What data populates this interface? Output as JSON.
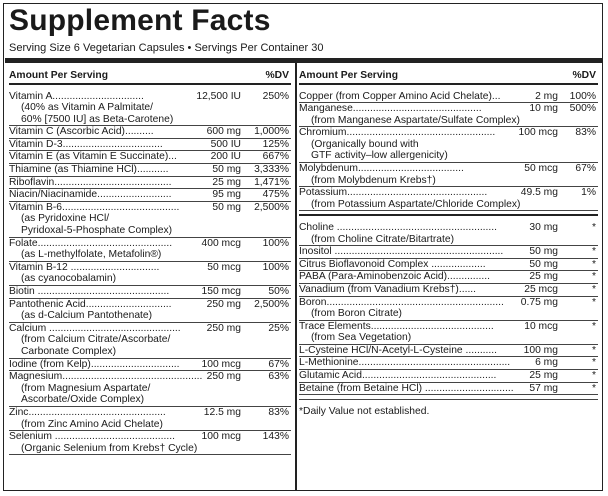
{
  "title": "Supplement Facts",
  "serving": "Serving Size 6 Vegetarian Capsules • Servings Per Container 30",
  "left": {
    "header_amount": "Amount Per Serving",
    "header_dv": "%DV",
    "items": [
      {
        "name": "Vitamin A................................",
        "amount": "12,500 IU",
        "dv": "250%",
        "sub": [
          "(40% as Vitamin A Palmitate/",
          "60% [7500 IU] as Beta-Carotene)"
        ]
      },
      {
        "name": "Vitamin C (Ascorbic Acid)..........",
        "amount": "600 mg",
        "dv": "1,000%",
        "sub": []
      },
      {
        "name": "Vitamin D-3...................................",
        "amount": "500 IU",
        "dv": "125%",
        "sub": []
      },
      {
        "name": "Vitamin E (as Vitamin E Succinate)...",
        "amount": "200 IU",
        "dv": "667%",
        "sub": []
      },
      {
        "name": "Thiamine (as Thiamine HCl)...........",
        "amount": "50 mg",
        "dv": "3,333%",
        "sub": []
      },
      {
        "name": "Riboflavin.........................................",
        "amount": "25 mg",
        "dv": "1,471%",
        "sub": []
      },
      {
        "name": "Niacin/Niacinamide..........................",
        "amount": "95 mg",
        "dv": "475%",
        "sub": []
      },
      {
        "name": "Vitamin B-6.........................................",
        "amount": "50 mg",
        "dv": "2,500%",
        "sub": [
          "(as Pyridoxine HCl/",
          "Pyridoxal-5-Phosphate Complex)"
        ]
      },
      {
        "name": "Folate...............................................",
        "amount": "400 mcg",
        "dv": "100%",
        "sub": [
          "(as L-methylfolate, Metafolin®)"
        ]
      },
      {
        "name": "Vitamin B-12 ...............................",
        "amount": "50 mcg",
        "dv": "100%",
        "sub": [
          "(as cyanocobalamin)"
        ]
      },
      {
        "name": "Biotin ..............................................",
        "amount": "150 mcg",
        "dv": "50%",
        "sub": []
      },
      {
        "name": "Pantothenic Acid..............................",
        "amount": "250 mg",
        "dv": "2,500%",
        "sub": [
          "(as d-Calcium Pantothenate)"
        ]
      },
      {
        "name": "Calcium ..............................................",
        "amount": "250 mg",
        "dv": "25%",
        "sub": [
          "(from Calcium Citrate/Ascorbate/",
          "Carbonate Complex)"
        ]
      },
      {
        "name": "Iodine (from Kelp)...............................",
        "amount": "100 mcg",
        "dv": "67%",
        "sub": []
      },
      {
        "name": "Magnesium.................................................",
        "amount": "250 mg",
        "dv": "63%",
        "sub": [
          "(from Magnesium Aspartate/",
          "Ascorbate/Oxide Complex)"
        ]
      },
      {
        "name": "Zinc................................................",
        "amount": "12.5 mg",
        "dv": "83%",
        "sub": [
          "(from Zinc Amino Acid Chelate)"
        ]
      },
      {
        "name": "Selenium ..........................................",
        "amount": "100 mcg",
        "dv": "143%",
        "sub": [
          "(Organic Selenium from Krebs† Cycle)"
        ]
      }
    ]
  },
  "right": {
    "header_amount": "Amount Per Serving",
    "header_dv": "%DV",
    "items_a": [
      {
        "name": "Copper (from Copper Amino Acid Chelate)...",
        "amount": "2 mg",
        "dv": "100%",
        "sub": []
      },
      {
        "name": "Manganese.............................................",
        "amount": "10 mg",
        "dv": "500%",
        "sub": [
          "(from Manganese Aspartate/Sulfate Complex)"
        ]
      },
      {
        "name": "Chromium....................................................",
        "amount": "100 mcg",
        "dv": "83%",
        "sub": [
          "(Organically bound with",
          "GTF activity–low allergenicity)"
        ]
      },
      {
        "name": "Molybdenum.....................................",
        "amount": "50 mcg",
        "dv": "67%",
        "sub": [
          "(from Molybdenum Krebs†)"
        ]
      },
      {
        "name": "Potassium.................................................",
        "amount": "49.5 mg",
        "dv": "1%",
        "sub": [
          "(from Potassium Aspartate/Chloride Complex)"
        ]
      }
    ],
    "items_b": [
      {
        "name": "Choline ........................................................",
        "amount": "30 mg",
        "dv": "*",
        "sub": [
          "(from Choline Citrate/Bitartrate)"
        ]
      },
      {
        "name": "Inositol ...........................................................",
        "amount": "50 mg",
        "dv": "*",
        "sub": []
      },
      {
        "name": "Citrus Bioflavonoid Complex ...................",
        "amount": "50 mg",
        "dv": "*",
        "sub": []
      },
      {
        "name": "PABA (Para-Aminobenzoic Acid)...............",
        "amount": "25 mg",
        "dv": "*",
        "sub": []
      },
      {
        "name": "Vanadium (from Vanadium Krebs†)......",
        "amount": "25 mcg",
        "dv": "*",
        "sub": []
      },
      {
        "name": "Boron..............................................................",
        "amount": "0.75 mg",
        "dv": "*",
        "sub": [
          "(from Boron Citrate)"
        ]
      },
      {
        "name": "Trace Elements...........................................",
        "amount": "10 mcg",
        "dv": "*",
        "sub": [
          "(from Sea Vegetation)"
        ]
      },
      {
        "name": "L-Cysteine HCl/N-Acetyl-L-Cysteine ...........",
        "amount": "100 mg",
        "dv": "*",
        "sub": []
      },
      {
        "name": "L-Methionine.....................................................",
        "amount": "6 mg",
        "dv": "*",
        "sub": []
      },
      {
        "name": "Glutamic Acid...............................................",
        "amount": "25 mg",
        "dv": "*",
        "sub": []
      },
      {
        "name": "Betaine (from Betaine HCl) ...............................",
        "amount": "57 mg",
        "dv": "*",
        "sub": []
      }
    ],
    "footnote": "*Daily Value not established."
  }
}
